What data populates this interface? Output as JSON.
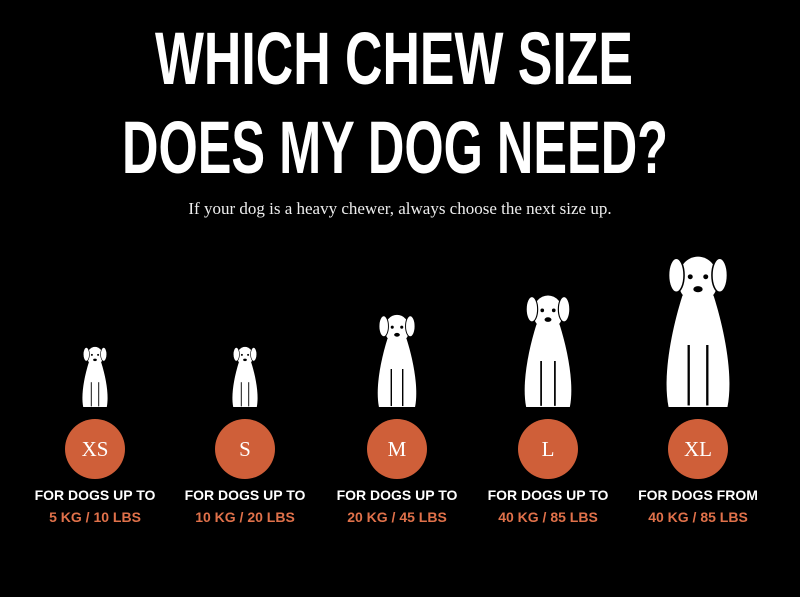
{
  "title": {
    "line1": "WHICH CHEW SIZE",
    "line2": "DOES MY DOG NEED?"
  },
  "subtitle": "If your dog is a heavy chewer, always choose the next size up.",
  "sizes": [
    {
      "size": "XS",
      "line1": "FOR DOGS UP TO",
      "line2": "5 KG / 10 LBS"
    },
    {
      "size": "S",
      "line1": "FOR DOGS UP TO",
      "line2": "10 KG / 20 LBS"
    },
    {
      "size": "M",
      "line1": "FOR DOGS UP TO",
      "line2": "20 KG / 45 LBS"
    },
    {
      "size": "L",
      "line1": "FOR DOGS UP TO",
      "line2": "40 KG / 85 LBS"
    },
    {
      "size": "XL",
      "line1": "FOR DOGS FROM",
      "line2": "40 KG / 85 LBS"
    }
  ]
}
